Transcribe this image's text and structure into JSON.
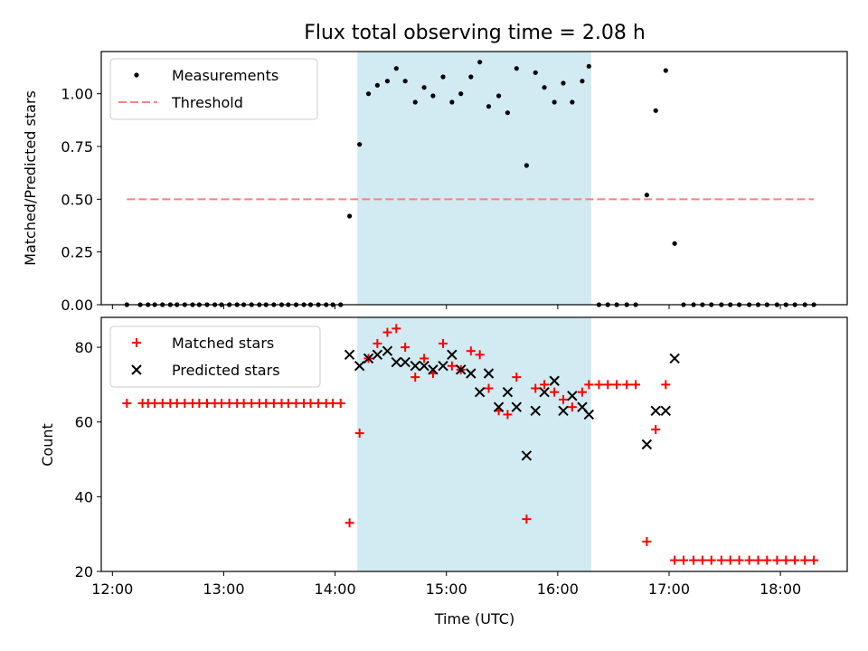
{
  "chart_data": [
    {
      "type": "scatter",
      "title": "Flux total observing time = 2.08 h",
      "xlabel": "",
      "ylabel": "Matched/Predicted stars",
      "ylim": [
        0,
        1.2
      ],
      "yticks": [
        "0.00",
        "0.25",
        "0.50",
        "0.75",
        "1.00"
      ],
      "yticks_values": [
        0,
        0.25,
        0.5,
        0.75,
        1.0
      ],
      "shaded_region": {
        "x_start": 14.2,
        "x_end": 16.3,
        "color": "#add8e6"
      },
      "legend_placement": "upper-left",
      "series": [
        {
          "name": "Measurements",
          "marker": "dot",
          "color": "#000000",
          "x": [
            12.13,
            12.25,
            12.32,
            12.38,
            12.45,
            12.52,
            12.58,
            12.65,
            12.72,
            12.78,
            12.85,
            12.92,
            12.98,
            13.05,
            13.12,
            13.18,
            13.25,
            13.32,
            13.38,
            13.45,
            13.52,
            13.58,
            13.65,
            13.72,
            13.78,
            13.85,
            13.92,
            13.98,
            14.05,
            14.13,
            14.22,
            14.3,
            14.38,
            14.47,
            14.55,
            14.63,
            14.72,
            14.8,
            14.88,
            14.97,
            15.05,
            15.13,
            15.22,
            15.3,
            15.38,
            15.47,
            15.55,
            15.63,
            15.72,
            15.8,
            15.88,
            15.97,
            16.05,
            16.13,
            16.22,
            16.28,
            16.37,
            16.45,
            16.53,
            16.62,
            16.7,
            16.8,
            16.88,
            16.97,
            17.05,
            17.13,
            17.22,
            17.3,
            17.38,
            17.47,
            17.55,
            17.63,
            17.72,
            17.8,
            17.88,
            17.97,
            18.05,
            18.13,
            18.22,
            18.3
          ],
          "y": [
            0,
            0,
            0,
            0,
            0,
            0,
            0,
            0,
            0,
            0,
            0,
            0,
            0,
            0,
            0,
            0,
            0,
            0,
            0,
            0,
            0,
            0,
            0,
            0,
            0,
            0,
            0,
            0,
            0,
            0.42,
            0.76,
            1.0,
            1.04,
            1.06,
            1.12,
            1.06,
            0.96,
            1.03,
            0.99,
            1.08,
            0.96,
            1.0,
            1.08,
            1.15,
            0.94,
            0.99,
            0.91,
            1.12,
            0.66,
            1.1,
            1.03,
            0.96,
            1.05,
            0.96,
            1.06,
            1.13,
            0,
            0,
            0,
            0,
            0,
            0.52,
            0.92,
            1.11,
            0.29,
            0,
            0,
            0,
            0,
            0,
            0,
            0,
            0,
            0,
            0,
            0,
            0,
            0,
            0,
            0
          ]
        },
        {
          "name": "Threshold",
          "marker": "dashed-line",
          "color": "#ff7f7f",
          "x": [
            12.13,
            18.3
          ],
          "y": [
            0.5,
            0.5
          ]
        }
      ]
    },
    {
      "type": "scatter",
      "title": "",
      "xlabel": "Time (UTC)",
      "ylabel": "Count",
      "ylim": [
        20,
        88
      ],
      "yticks": [
        "20",
        "40",
        "60",
        "80"
      ],
      "yticks_values": [
        20,
        40,
        60,
        80
      ],
      "xlim": [
        11.9,
        18.6
      ],
      "xticks": [
        "12:00",
        "13:00",
        "14:00",
        "15:00",
        "16:00",
        "17:00",
        "18:00"
      ],
      "xticks_values": [
        12,
        13,
        14,
        15,
        16,
        17,
        18
      ],
      "shaded_region": {
        "x_start": 14.2,
        "x_end": 16.3,
        "color": "#add8e6"
      },
      "legend_placement": "upper-left",
      "series": [
        {
          "name": "Matched stars",
          "marker": "plus",
          "color": "#ff0000",
          "x": [
            12.13,
            12.27,
            12.32,
            12.38,
            12.45,
            12.52,
            12.58,
            12.65,
            12.72,
            12.78,
            12.85,
            12.92,
            12.98,
            13.05,
            13.12,
            13.18,
            13.25,
            13.32,
            13.38,
            13.45,
            13.52,
            13.58,
            13.65,
            13.72,
            13.78,
            13.85,
            13.92,
            13.98,
            14.05,
            14.13,
            14.22,
            14.3,
            14.38,
            14.47,
            14.55,
            14.63,
            14.72,
            14.8,
            14.88,
            14.97,
            15.05,
            15.13,
            15.22,
            15.3,
            15.38,
            15.47,
            15.55,
            15.63,
            15.72,
            15.8,
            15.88,
            15.97,
            16.05,
            16.13,
            16.22,
            16.28,
            16.37,
            16.45,
            16.53,
            16.62,
            16.7,
            16.8,
            16.88,
            16.97,
            17.05,
            17.13,
            17.22,
            17.3,
            17.38,
            17.47,
            17.55,
            17.63,
            17.72,
            17.8,
            17.88,
            17.97,
            18.05,
            18.13,
            18.22,
            18.3
          ],
          "y": [
            65,
            65,
            65,
            65,
            65,
            65,
            65,
            65,
            65,
            65,
            65,
            65,
            65,
            65,
            65,
            65,
            65,
            65,
            65,
            65,
            65,
            65,
            65,
            65,
            65,
            65,
            65,
            65,
            65,
            33,
            57,
            77,
            81,
            84,
            85,
            80,
            72,
            77,
            73,
            81,
            75,
            74,
            79,
            78,
            69,
            63,
            62,
            72,
            34,
            69,
            70,
            68,
            66,
            64,
            68,
            70,
            70,
            70,
            70,
            70,
            70,
            28,
            58,
            70,
            23,
            23,
            23,
            23,
            23,
            23,
            23,
            23,
            23,
            23,
            23,
            23,
            23,
            23,
            23,
            23
          ]
        },
        {
          "name": "Predicted stars",
          "marker": "x",
          "color": "#000000",
          "x": [
            14.13,
            14.22,
            14.3,
            14.38,
            14.47,
            14.55,
            14.63,
            14.72,
            14.8,
            14.88,
            14.97,
            15.05,
            15.13,
            15.22,
            15.3,
            15.38,
            15.47,
            15.55,
            15.63,
            15.72,
            15.8,
            15.88,
            15.97,
            16.05,
            16.13,
            16.22,
            16.28,
            16.8,
            16.88,
            16.97,
            17.05
          ],
          "y": [
            78,
            75,
            77,
            78,
            79,
            76,
            76,
            75,
            75,
            74,
            75,
            78,
            74,
            73,
            68,
            73,
            64,
            68,
            64,
            51,
            63,
            68,
            71,
            63,
            67,
            64,
            62,
            54,
            63,
            63,
            77
          ]
        }
      ]
    }
  ]
}
